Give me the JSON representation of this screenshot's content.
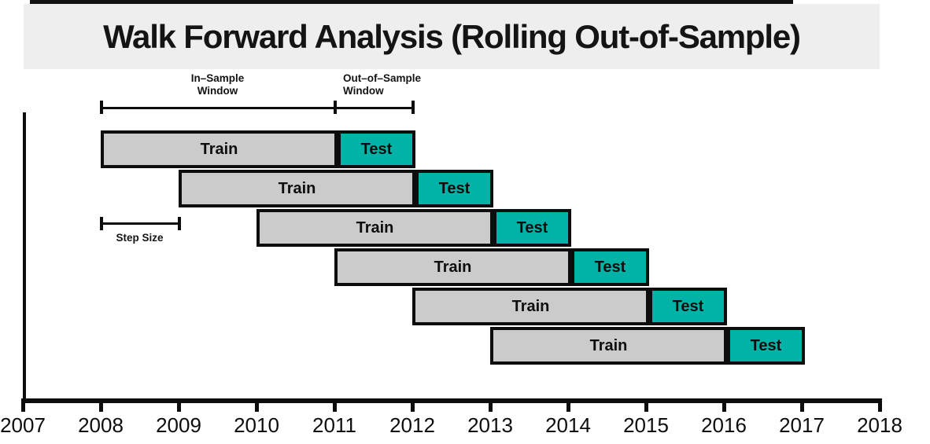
{
  "title": "Walk Forward Analysis (Rolling Out-of-Sample)",
  "annotations": {
    "in_sample": {
      "line1": "In–Sample",
      "line2": "Window"
    },
    "out_of_sample": {
      "line1": "Out–of–Sample",
      "line2": "Window"
    },
    "step_size": "Step Size"
  },
  "chart_data": {
    "type": "gantt",
    "title": "Walk Forward Analysis (Rolling Out-of-Sample)",
    "description": "Rolling walk-forward validation: six folds, each with a 3-year in-sample (Train) window followed by a 1-year out-of-sample (Test) window, stepped forward 1 year per fold.",
    "x_axis": {
      "min": 2007,
      "max": 2018,
      "ticks": [
        2007,
        2008,
        2009,
        2010,
        2011,
        2012,
        2013,
        2014,
        2015,
        2016,
        2017,
        2018
      ]
    },
    "train_label": "Train",
    "test_label": "Test",
    "series": [
      {
        "fold": 1,
        "train": [
          2008,
          2011
        ],
        "test": [
          2011,
          2012
        ]
      },
      {
        "fold": 2,
        "train": [
          2009,
          2012
        ],
        "test": [
          2012,
          2013
        ]
      },
      {
        "fold": 3,
        "train": [
          2010,
          2013
        ],
        "test": [
          2013,
          2014
        ]
      },
      {
        "fold": 4,
        "train": [
          2011,
          2014
        ],
        "test": [
          2014,
          2015
        ]
      },
      {
        "fold": 5,
        "train": [
          2012,
          2015
        ],
        "test": [
          2015,
          2016
        ]
      },
      {
        "fold": 6,
        "train": [
          2013,
          2016
        ],
        "test": [
          2016,
          2017
        ]
      }
    ],
    "annotations": {
      "in_sample_window": [
        2008,
        2011
      ],
      "out_of_sample_window": [
        2011,
        2012
      ],
      "step_size": [
        2008,
        2009
      ]
    },
    "colors": {
      "train_fill": "#cbcbcb",
      "test_fill": "#00b3a6",
      "border": "#0d0d0d",
      "banner_bg": "#eeeeee",
      "axis": "#0d0d0d"
    },
    "legend_position": "none",
    "grid": false
  }
}
